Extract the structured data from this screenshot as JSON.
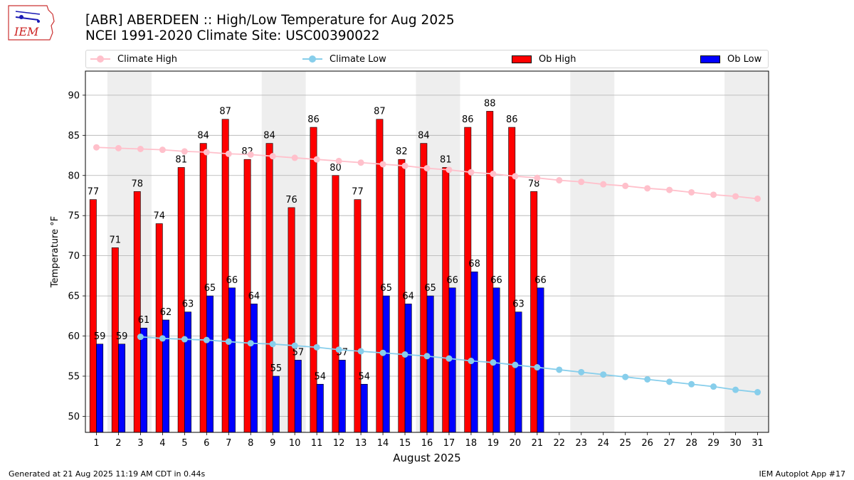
{
  "logo": {
    "text": "IEM"
  },
  "title": {
    "line1": "[ABR] ABERDEEN :: High/Low Temperature for Aug 2025",
    "line2": "NCEI 1991-2020 Climate Site: USC00390022"
  },
  "legend": {
    "climate_high": "Climate High",
    "climate_low": "Climate Low",
    "ob_high": "Ob High",
    "ob_low": "Ob Low"
  },
  "footer": {
    "left": "Generated at 21 Aug 2025 11:19 AM CDT in 0.44s",
    "right": "IEM Autoplot App #17"
  },
  "colors": {
    "ob_high": "#ff0000",
    "ob_low": "#0000ff",
    "climate_high": "#ffc0cb",
    "climate_low": "#87ceeb",
    "weekend_shade": "#eeeeee",
    "grid": "#b0b0b0"
  },
  "chart_data": {
    "type": "bar",
    "xlabel": "August 2025",
    "ylabel": "Temperature °F",
    "xlim": [
      0.5,
      31.5
    ],
    "ylim": [
      48,
      93
    ],
    "yticks": [
      50,
      55,
      60,
      65,
      70,
      75,
      80,
      85,
      90
    ],
    "days": [
      1,
      2,
      3,
      4,
      5,
      6,
      7,
      8,
      9,
      10,
      11,
      12,
      13,
      14,
      15,
      16,
      17,
      18,
      19,
      20,
      21,
      22,
      23,
      24,
      25,
      26,
      27,
      28,
      29,
      30,
      31
    ],
    "weekend_spans": [
      [
        1.5,
        3.5
      ],
      [
        8.5,
        10.5
      ],
      [
        15.5,
        17.5
      ],
      [
        22.5,
        24.5
      ],
      [
        29.5,
        31.5
      ]
    ],
    "series": [
      {
        "name": "Ob High",
        "kind": "bar",
        "values": [
          77,
          71,
          78,
          74,
          81,
          84,
          87,
          82,
          84,
          76,
          86,
          80,
          77,
          87,
          82,
          84,
          81,
          86,
          88,
          86,
          78
        ]
      },
      {
        "name": "Ob Low",
        "kind": "bar",
        "values": [
          59,
          59,
          61,
          62,
          63,
          65,
          66,
          64,
          55,
          57,
          54,
          57,
          54,
          65,
          64,
          65,
          66,
          68,
          66,
          63,
          66
        ]
      },
      {
        "name": "Climate High",
        "kind": "line",
        "values": [
          83.5,
          83.4,
          83.3,
          83.2,
          83.0,
          82.9,
          82.7,
          82.6,
          82.4,
          82.2,
          82.0,
          81.8,
          81.6,
          81.4,
          81.2,
          80.9,
          80.7,
          80.4,
          80.2,
          79.9,
          79.7,
          79.4,
          79.2,
          78.9,
          78.7,
          78.4,
          78.2,
          77.9,
          77.6,
          77.4,
          77.1
        ]
      },
      {
        "name": "Climate Low",
        "kind": "line",
        "values": [
          null,
          null,
          59.9,
          59.7,
          59.6,
          59.5,
          59.3,
          59.1,
          59.0,
          58.8,
          58.6,
          58.3,
          58.1,
          57.9,
          57.7,
          57.5,
          57.2,
          56.9,
          56.7,
          56.4,
          56.1,
          55.8,
          55.5,
          55.2,
          54.9,
          54.6,
          54.3,
          54.0,
          53.7,
          53.3,
          53.0
        ]
      }
    ]
  }
}
